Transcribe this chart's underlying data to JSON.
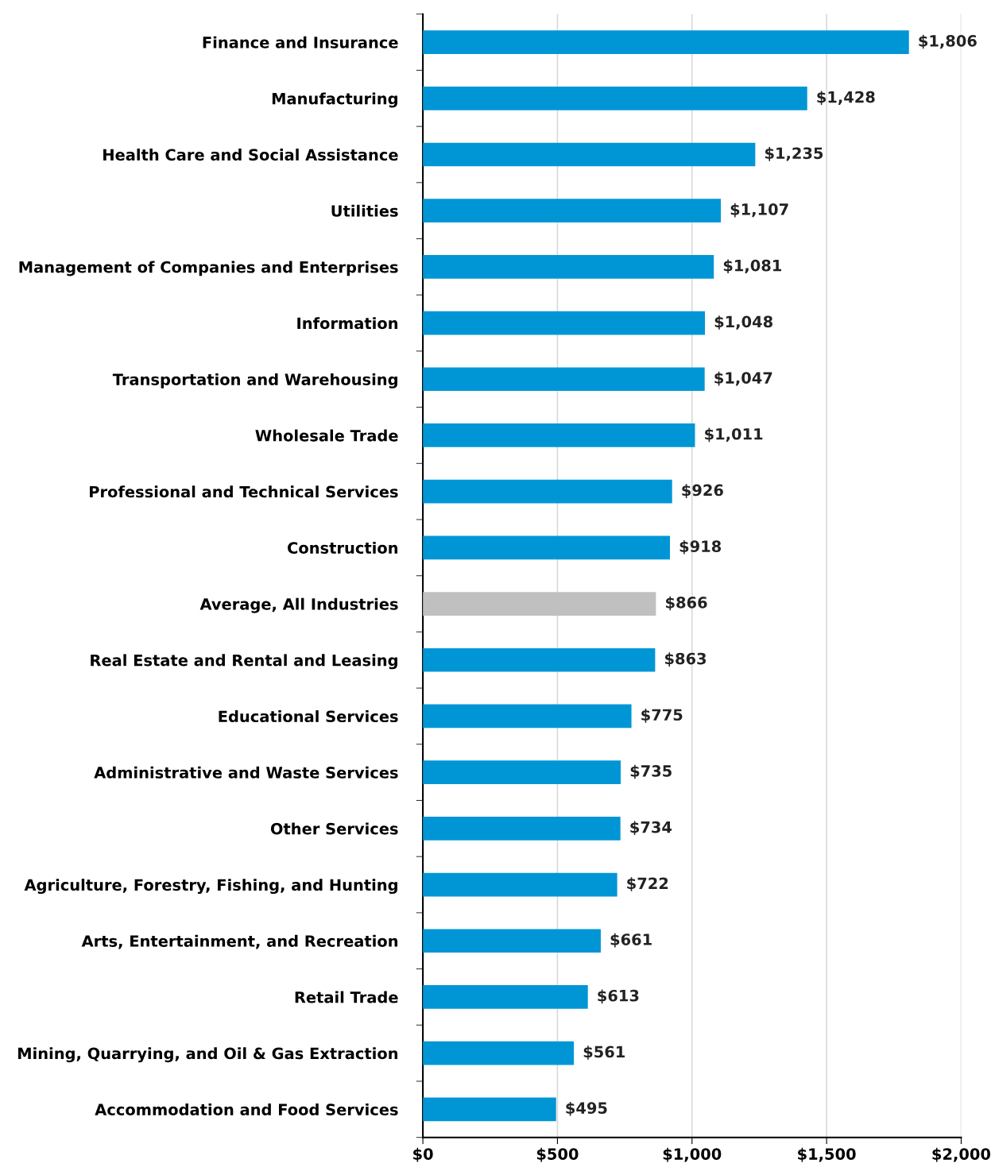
{
  "chart_data": {
    "type": "bar",
    "orientation": "horizontal",
    "categories": [
      "Finance and Insurance",
      "Manufacturing",
      "Health Care and Social Assistance",
      "Utilities",
      "Management of Companies and Enterprises",
      "Information",
      "Transportation and Warehousing",
      "Wholesale Trade",
      "Professional and Technical Services",
      "Construction",
      "Average, All Industries",
      "Real Estate and Rental and Leasing",
      "Educational Services",
      "Administrative and Waste Services",
      "Other Services",
      "Agriculture, Forestry, Fishing, and Hunting",
      "Arts, Entertainment, and Recreation",
      "Retail Trade",
      "Mining, Quarrying, and Oil & Gas Extraction",
      "Accommodation and Food Services"
    ],
    "values": [
      1806,
      1428,
      1235,
      1107,
      1081,
      1048,
      1047,
      1011,
      926,
      918,
      866,
      863,
      775,
      735,
      734,
      722,
      661,
      613,
      561,
      495
    ],
    "colors": [
      "#0096d6",
      "#0096d6",
      "#0096d6",
      "#0096d6",
      "#0096d6",
      "#0096d6",
      "#0096d6",
      "#0096d6",
      "#0096d6",
      "#0096d6",
      "#c0c0c0",
      "#0096d6",
      "#0096d6",
      "#0096d6",
      "#0096d6",
      "#0096d6",
      "#0096d6",
      "#0096d6",
      "#0096d6",
      "#0096d6"
    ],
    "value_labels": [
      "$1,806",
      "$1,428",
      "$1,235",
      "$1,107",
      "$1,081",
      "$1,048",
      "$1,047",
      "$1,011",
      "$926",
      "$918",
      "$866",
      "$863",
      "$775",
      "$735",
      "$734",
      "$722",
      "$661",
      "$613",
      "$561",
      "$495"
    ],
    "xlim": [
      0,
      2000
    ],
    "xticks": [
      {
        "value": 0,
        "label": "$0"
      },
      {
        "value": 500,
        "label": "$500"
      },
      {
        "value": 1000,
        "label": "$1,000"
      },
      {
        "value": 1500,
        "label": "$1,500"
      },
      {
        "value": 2000,
        "label": "$2,000"
      }
    ],
    "grid": "x"
  }
}
